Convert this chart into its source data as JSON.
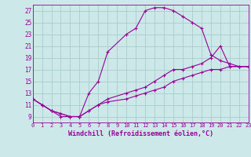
{
  "background_color": "#cce8e8",
  "grid_color": "#aacccc",
  "line_color": "#990099",
  "marker": "+",
  "xlabel": "Windchill (Refroidissement éolien,°C)",
  "xlim": [
    0,
    23
  ],
  "ylim": [
    8,
    28
  ],
  "yticks": [
    9,
    11,
    13,
    15,
    17,
    19,
    21,
    23,
    25,
    27
  ],
  "xticks": [
    0,
    1,
    2,
    3,
    4,
    5,
    6,
    7,
    8,
    9,
    10,
    11,
    12,
    13,
    14,
    15,
    16,
    17,
    18,
    19,
    20,
    21,
    22,
    23
  ],
  "curve1_x": [
    0,
    1,
    2,
    3,
    4,
    5,
    6,
    7,
    8,
    10,
    11,
    12,
    13,
    14,
    15,
    16,
    17,
    18,
    19,
    20,
    21,
    22,
    23
  ],
  "curve1_y": [
    12,
    11,
    10,
    9,
    9,
    9,
    13,
    15,
    20,
    23,
    24,
    27,
    27.5,
    27.5,
    27,
    26,
    25,
    24,
    19.5,
    18.5,
    18,
    17.5,
    17.5
  ],
  "curve2_x": [
    0,
    1,
    2,
    3,
    4,
    5,
    6,
    7,
    8,
    10,
    11,
    12,
    13,
    14,
    15,
    16,
    17,
    18,
    19,
    20,
    21,
    22,
    23
  ],
  "curve2_y": [
    12,
    11,
    10,
    9.5,
    9,
    9,
    10,
    11,
    12,
    13,
    13.5,
    14,
    15,
    16,
    17,
    17,
    17.5,
    18,
    19,
    21,
    17.5,
    17.5,
    17.5
  ],
  "curve3_x": [
    0,
    1,
    2,
    3,
    4,
    5,
    6,
    7,
    8,
    10,
    11,
    12,
    13,
    14,
    15,
    16,
    17,
    18,
    19,
    20,
    21,
    22,
    23
  ],
  "curve3_y": [
    12,
    11,
    10,
    9.5,
    9.0,
    9.0,
    10,
    11,
    11.5,
    12,
    12.5,
    13,
    13.5,
    14,
    15,
    15.5,
    16,
    16.5,
    17,
    17,
    17.5,
    17.5,
    17.5
  ],
  "xlabel_fontsize": 6,
  "tick_fontsize": 5,
  "lw": 0.8,
  "ms": 3
}
